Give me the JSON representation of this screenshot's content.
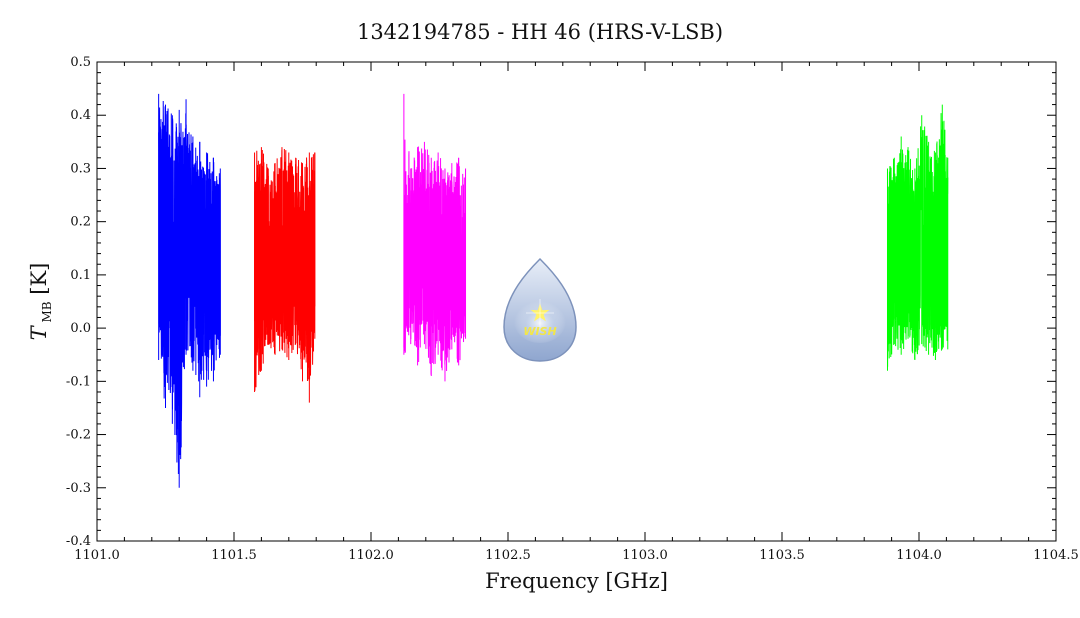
{
  "chart_data": {
    "type": "line",
    "title": "1342194785 - HH 46 (HRS-V-LSB)",
    "xlabel": "Frequency [GHz]",
    "ylabel_main": "T",
    "ylabel_sub": "MB",
    "ylabel_unit": "[K]",
    "xlim": [
      1101.0,
      1104.5
    ],
    "ylim": [
      -0.4,
      0.5
    ],
    "xticks": [
      "1101.0",
      "1101.5",
      "1102.0",
      "1102.5",
      "1103.0",
      "1103.5",
      "1104.0",
      "1104.5"
    ],
    "yticks": [
      "-0.4",
      "-0.3",
      "-0.2",
      "-0.1",
      "0.0",
      "0.1",
      "0.2",
      "0.3",
      "0.4",
      "0.5"
    ],
    "grid": false,
    "series": [
      {
        "color": "#0000ff",
        "x": [
          1101.225,
          1101.25,
          1101.275,
          1101.3,
          1101.325,
          1101.35,
          1101.375,
          1101.4,
          1101.425,
          1101.45
        ],
        "y": [
          0.15,
          0.14,
          0.16,
          0.13,
          0.15,
          0.14,
          0.16,
          0.15,
          0.13,
          0.14
        ],
        "y_min": [
          -0.06,
          -0.15,
          -0.18,
          -0.3,
          -0.05,
          -0.08,
          -0.13,
          -0.11,
          -0.1,
          -0.05
        ],
        "y_max": [
          0.44,
          0.42,
          0.4,
          0.41,
          0.43,
          0.36,
          0.35,
          0.33,
          0.32,
          0.3
        ]
      },
      {
        "color": "#ff0000",
        "x": [
          1101.575,
          1101.6,
          1101.625,
          1101.65,
          1101.675,
          1101.7,
          1101.725,
          1101.75,
          1101.775,
          1101.795
        ],
        "y": [
          0.13,
          0.12,
          0.14,
          0.13,
          0.12,
          0.14,
          0.13,
          0.12,
          0.13,
          0.12
        ],
        "y_min": [
          -0.12,
          -0.08,
          -0.03,
          -0.05,
          -0.04,
          -0.06,
          -0.03,
          -0.1,
          -0.14,
          -0.02
        ],
        "y_max": [
          0.33,
          0.34,
          0.3,
          0.31,
          0.34,
          0.33,
          0.32,
          0.31,
          0.33,
          0.33
        ]
      },
      {
        "color": "#ff00ff",
        "x": [
          1102.12,
          1102.145,
          1102.17,
          1102.195,
          1102.22,
          1102.245,
          1102.27,
          1102.295,
          1102.32,
          1102.345
        ],
        "y": [
          0.14,
          0.13,
          0.15,
          0.14,
          0.13,
          0.15,
          0.14,
          0.13,
          0.14,
          0.13
        ],
        "y_min": [
          -0.05,
          -0.03,
          -0.07,
          -0.03,
          -0.09,
          -0.05,
          -0.1,
          -0.04,
          -0.07,
          -0.02
        ],
        "y_max": [
          0.44,
          0.3,
          0.34,
          0.35,
          0.32,
          0.33,
          0.3,
          0.31,
          0.32,
          0.3
        ]
      },
      {
        "color": "#00ff00",
        "x": [
          1103.885,
          1103.91,
          1103.935,
          1103.96,
          1103.985,
          1104.01,
          1104.035,
          1104.06,
          1104.085,
          1104.105
        ],
        "y": [
          0.14,
          0.15,
          0.13,
          0.16,
          0.14,
          0.15,
          0.16,
          0.14,
          0.15,
          0.13
        ],
        "y_min": [
          -0.08,
          -0.03,
          -0.05,
          -0.02,
          -0.06,
          -0.03,
          -0.05,
          -0.06,
          -0.04,
          -0.04
        ],
        "y_max": [
          0.3,
          0.32,
          0.36,
          0.34,
          0.3,
          0.4,
          0.35,
          0.33,
          0.42,
          0.32
        ]
      }
    ]
  },
  "logo": {
    "text": "WISH",
    "colors": {
      "drop_top": "#e8eef8",
      "drop_bottom": "#8fa6cf",
      "outline": "#7d92bb",
      "star": "#fff36b"
    }
  }
}
